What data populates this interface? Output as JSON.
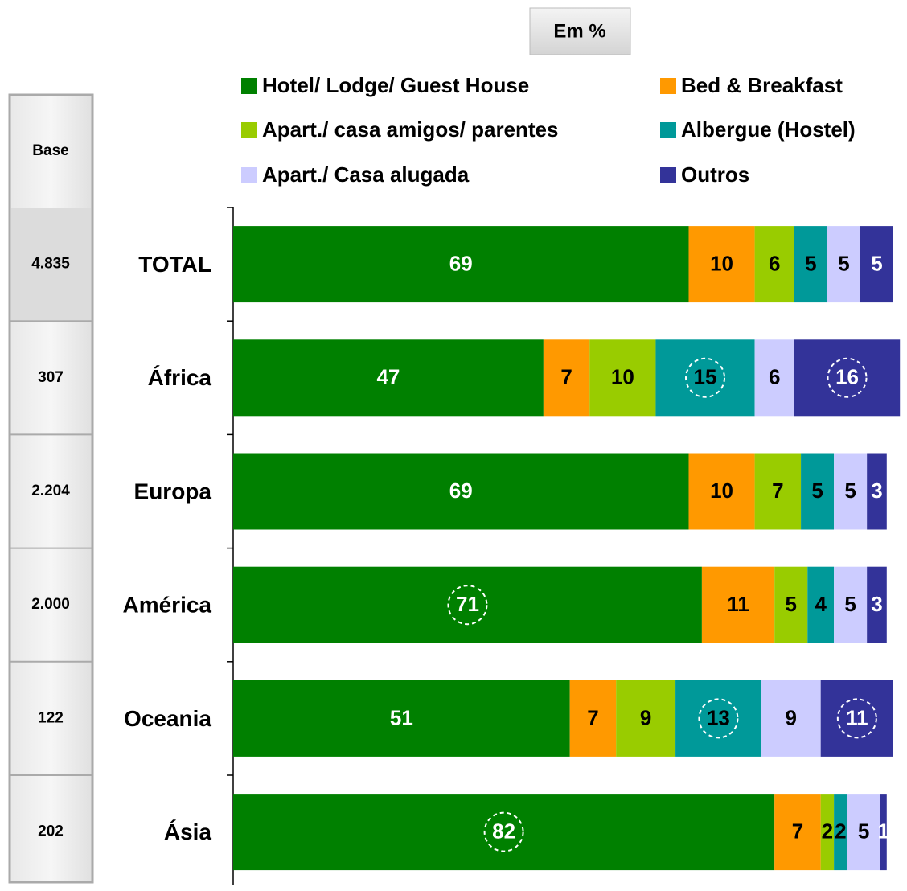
{
  "chart_data": {
    "type": "stacked-barh",
    "unit_label": "Em %",
    "base_label": "Base",
    "base": [
      "4.835",
      "307",
      "2.204",
      "2.000",
      "122",
      "202"
    ],
    "categories": [
      "TOTAL",
      "África",
      "Europa",
      "América",
      "Oceania",
      "Ásia"
    ],
    "xlim": [
      0,
      100
    ],
    "series": [
      {
        "name": "Hotel/ Lodge/ Guest House",
        "color": "#008000",
        "label_color": "#ffffff",
        "values": [
          69,
          47,
          69,
          71,
          51,
          82
        ]
      },
      {
        "name": "Bed & Breakfast",
        "color": "#ff9900",
        "label_color": "#000000",
        "values": [
          10,
          7,
          10,
          11,
          7,
          7
        ]
      },
      {
        "name": "Apart./ casa amigos/ parentes",
        "color": "#99cc00",
        "label_color": "#000000",
        "values": [
          6,
          10,
          7,
          5,
          9,
          2
        ]
      },
      {
        "name": "Albergue (Hostel)",
        "color": "#009999",
        "label_color": "#000000",
        "values": [
          5,
          15,
          5,
          4,
          13,
          2
        ]
      },
      {
        "name": "Apart./ Casa alugada",
        "color": "#ccccff",
        "label_color": "#000000",
        "values": [
          5,
          6,
          5,
          5,
          9,
          5
        ]
      },
      {
        "name": "Outros",
        "color": "#333399",
        "label_color": "#ffffff",
        "values": [
          5,
          16,
          3,
          3,
          11,
          1
        ]
      }
    ],
    "circled": [
      {
        "series": 0,
        "category": 3
      },
      {
        "series": 0,
        "category": 5
      },
      {
        "series": 3,
        "category": 1
      },
      {
        "series": 5,
        "category": 1
      },
      {
        "series": 3,
        "category": 4
      },
      {
        "series": 5,
        "category": 4
      }
    ]
  }
}
